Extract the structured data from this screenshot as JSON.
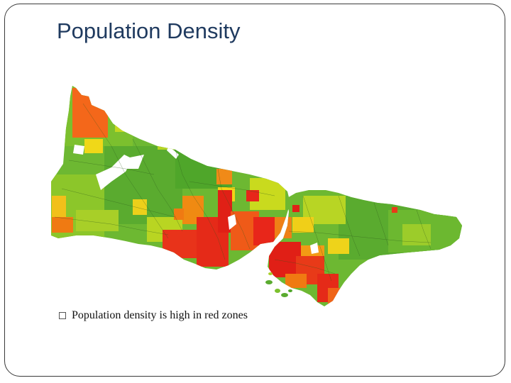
{
  "slide": {
    "title": "Population Density",
    "bullets": [
      {
        "icon": "square-bullet-icon",
        "text": "Population density is high in red zones"
      }
    ]
  },
  "map": {
    "subject": "population density choropleth",
    "palette": {
      "high": "#e8261a",
      "mid_high": "#f07a12",
      "mid": "#f2d416",
      "mid_low": "#a9d12a",
      "low": "#5aab2f",
      "very_low": "#3d9a2a",
      "no_data": "#ffffff",
      "water": "#ffffff"
    }
  }
}
